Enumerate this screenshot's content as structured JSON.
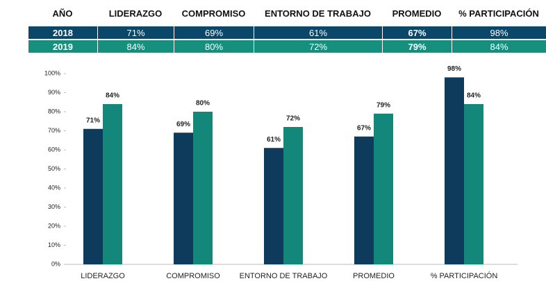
{
  "table": {
    "header": [
      "AÑO",
      "LIDERAZGO",
      "COMPROMISO",
      "ENTORNO DE TRABAJO",
      "PROMEDIO",
      "% PARTICIPACIÓN"
    ],
    "rows": [
      [
        "2018",
        "71%",
        "69%",
        "61%",
        "67%",
        "98%"
      ],
      [
        "2019",
        "84%",
        "80%",
        "72%",
        "79%",
        "84%"
      ]
    ]
  },
  "chart_data": {
    "type": "bar",
    "categories": [
      "LIDERAZGO",
      "COMPROMISO",
      "ENTORNO DE TRABAJO",
      "PROMEDIO",
      "% PARTICIPACIÓN"
    ],
    "series": [
      {
        "color": "#0e3a5b",
        "values": [
          71,
          69,
          61,
          67,
          98
        ],
        "value_labels": [
          "71%",
          "69%",
          "61%",
          "67%",
          "98%"
        ]
      },
      {
        "color": "#13877a",
        "values": [
          84,
          80,
          72,
          79,
          84
        ],
        "value_labels": [
          "84%",
          "80%",
          "72%",
          "79%",
          "84%"
        ]
      }
    ],
    "ylim": [
      0,
      100
    ],
    "yticks": [
      {
        "value": 0,
        "label": "0%"
      },
      {
        "value": 10,
        "label": "10%"
      },
      {
        "value": 20,
        "label": "20%"
      },
      {
        "value": 30,
        "label": "30%"
      },
      {
        "value": 40,
        "label": "40%"
      },
      {
        "value": 50,
        "label": "50%"
      },
      {
        "value": 60,
        "label": "60%"
      },
      {
        "value": 70,
        "label": "70%"
      },
      {
        "value": 80,
        "label": "80%"
      },
      {
        "value": 90,
        "label": "90%"
      },
      {
        "value": 100,
        "label": "100%"
      }
    ]
  }
}
